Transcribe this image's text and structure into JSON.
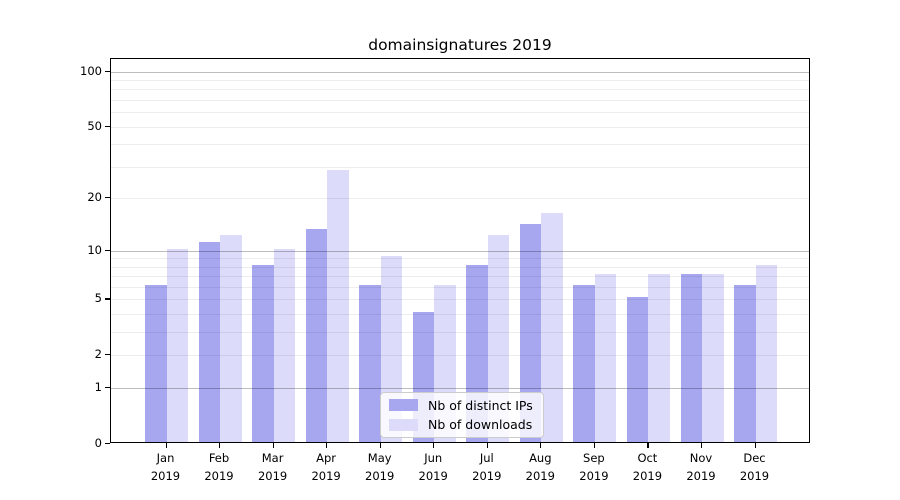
{
  "title": "domainsignatures 2019",
  "chart_data": {
    "type": "bar",
    "title": "domainsignatures 2019",
    "categories": [
      "Jan 2019",
      "Feb 2019",
      "Mar 2019",
      "Apr 2019",
      "May 2019",
      "Jun 2019",
      "Jul 2019",
      "Aug 2019",
      "Sep 2019",
      "Oct 2019",
      "Nov 2019",
      "Dec 2019"
    ],
    "series": [
      {
        "name": "Nb of distinct IPs",
        "color": "#a7a7f0",
        "values": [
          6,
          11,
          8,
          13,
          6,
          4,
          8,
          14,
          6,
          5,
          7,
          6
        ]
      },
      {
        "name": "Nb of downloads",
        "color": "#dcdcfa",
        "values": [
          10,
          12,
          10,
          28,
          9,
          6,
          12,
          16,
          7,
          7,
          7,
          8
        ]
      }
    ],
    "yaxis": {
      "scale": "symlog-ln(1+v)",
      "max": 117,
      "ticks": [
        0,
        1,
        2,
        5,
        10,
        20,
        50,
        100
      ],
      "major_gridlines": [
        1,
        10,
        100
      ],
      "minor_gridlines": [
        2,
        3,
        4,
        5,
        6,
        7,
        8,
        9,
        20,
        30,
        40,
        50,
        60,
        70,
        80,
        90
      ]
    },
    "legend_position": "bottom-center",
    "grid": true
  },
  "colors": {
    "axis": "#000000",
    "distinct_ips": "#a7a7f0",
    "downloads": "#dcdcfa",
    "legend_border": "#cccccc"
  }
}
